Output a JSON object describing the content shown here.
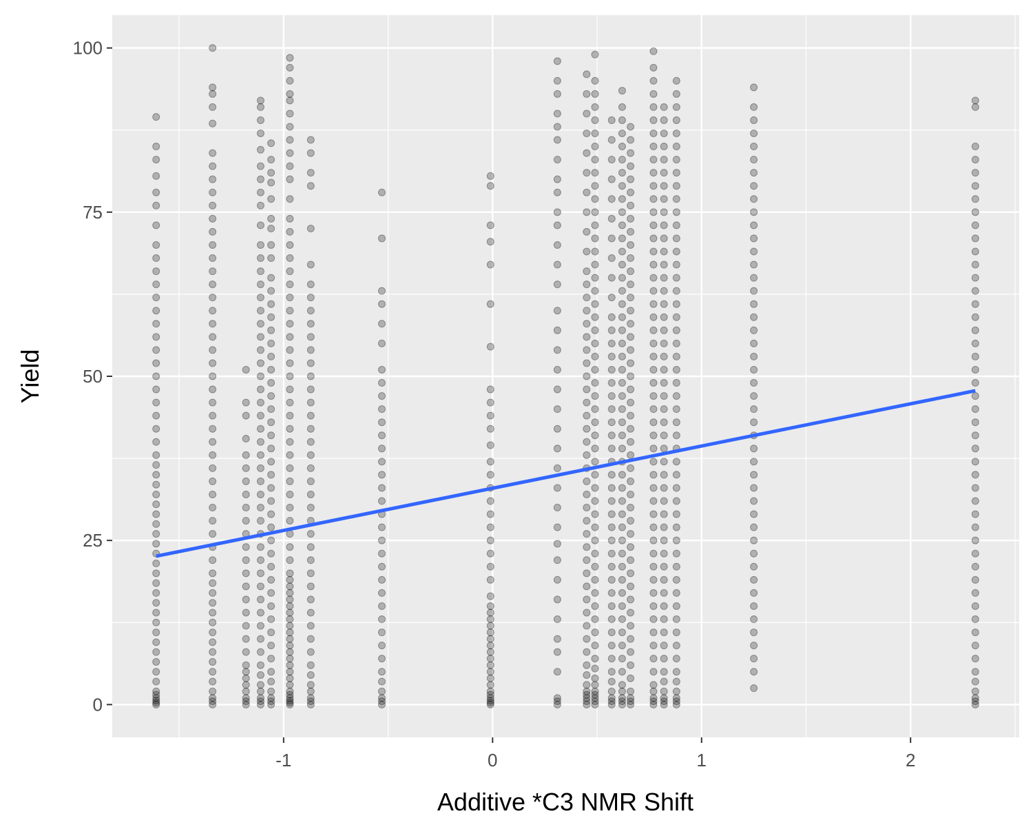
{
  "chart_data": {
    "type": "scatter",
    "title": "",
    "xlabel": "Additive *C3 NMR Shift",
    "ylabel": "Yield",
    "xlim": [
      -1.82,
      2.52
    ],
    "ylim": [
      -5,
      105
    ],
    "x_ticks": [
      -1,
      0,
      1,
      2
    ],
    "x_tick_labels": [
      "-1",
      "0",
      "1",
      "2"
    ],
    "y_ticks": [
      0,
      25,
      50,
      75,
      100
    ],
    "y_tick_labels": [
      "0",
      "25",
      "50",
      "75",
      "100"
    ],
    "grid": true,
    "legend": "none",
    "colors": {
      "panel": "#EBEBEB",
      "grid": "#FFFFFF",
      "points": "#000000",
      "trend_line": "#3366FF"
    },
    "point_alpha": 0.25,
    "trend_line": {
      "x": [
        -1.61,
        2.31
      ],
      "y": [
        22.6,
        47.8
      ]
    },
    "columns": [
      {
        "x": -1.61,
        "y": [
          0.0,
          0.3,
          0.6,
          1.0,
          1.5,
          2.0,
          3.5,
          5.0,
          6.5,
          8.0,
          9.5,
          11.0,
          12.5,
          14.0,
          15.5,
          17.0,
          18.5,
          20.0,
          21.5,
          23.0,
          24.5,
          26.0,
          27.5,
          29.0,
          30.5,
          32.0,
          33.5,
          35.0,
          36.5,
          38.0,
          40.0,
          42.0,
          44.0,
          46.0,
          48.0,
          50.0,
          52.0,
          54.0,
          56.0,
          58.0,
          60.0,
          62.0,
          64.0,
          66.0,
          68.0,
          70.0,
          73.0,
          76.0,
          78.0,
          80.5,
          83.0,
          85.0,
          89.5
        ]
      },
      {
        "x": -1.34,
        "y": [
          0.0,
          0.5,
          1.0,
          2.0,
          3.5,
          5.0,
          6.5,
          8.0,
          9.5,
          11.0,
          12.5,
          14.0,
          15.5,
          17.0,
          18.5,
          20.0,
          22.0,
          24.0,
          26.0,
          28.0,
          30.0,
          32.0,
          34.0,
          36.0,
          38.0,
          40.0,
          42.0,
          44.0,
          46.0,
          48.0,
          50.0,
          52.0,
          54.0,
          56.0,
          58.0,
          60.0,
          62.0,
          64.0,
          66.0,
          68.0,
          70.0,
          72.0,
          74.0,
          76.0,
          78.0,
          80.0,
          82.0,
          84.0,
          88.5,
          91.0,
          93.0,
          94.0,
          100.0
        ]
      },
      {
        "x": -1.18,
        "y": [
          0.0,
          0.5,
          1.0,
          2.0,
          3.0,
          4.0,
          5.0,
          6.0,
          8.0,
          10.0,
          12.0,
          14.0,
          16.0,
          18.0,
          20.0,
          22.0,
          24.0,
          26.0,
          28.0,
          30.0,
          32.0,
          34.0,
          36.0,
          38.0,
          40.5,
          44.0,
          46.0,
          51.0
        ]
      },
      {
        "x": -1.11,
        "y": [
          0.0,
          0.5,
          1.0,
          2.0,
          3.0,
          4.5,
          6.0,
          8.0,
          10.0,
          12.0,
          14.0,
          16.0,
          18.0,
          20.0,
          22.0,
          24.0,
          26.0,
          28.0,
          30.0,
          32.0,
          34.0,
          36.0,
          38.0,
          40.0,
          42.0,
          44.0,
          46.0,
          48.0,
          50.0,
          52.0,
          54.0,
          56.0,
          58.0,
          60.0,
          62.0,
          64.0,
          66.0,
          68.0,
          70.0,
          73.0,
          76.0,
          78.0,
          80.0,
          82.0,
          84.5,
          87.0,
          89.0,
          91.0,
          92.0
        ]
      },
      {
        "x": -1.06,
        "y": [
          0.0,
          0.5,
          1.0,
          2.0,
          3.5,
          5.0,
          7.0,
          9.0,
          11.0,
          13.0,
          15.0,
          17.0,
          19.0,
          21.0,
          23.0,
          25.0,
          27.0,
          29.0,
          31.0,
          33.0,
          35.0,
          37.0,
          39.0,
          41.0,
          43.0,
          45.0,
          47.0,
          49.0,
          51.0,
          53.0,
          55.0,
          57.0,
          59.0,
          61.0,
          63.0,
          65.0,
          68.0,
          70.0,
          72.5,
          74.0,
          77.0,
          79.5,
          81.0,
          83.0,
          85.5
        ]
      },
      {
        "x": -0.97,
        "y": [
          0.0,
          0.3,
          0.6,
          1.0,
          1.5,
          2.0,
          3.0,
          4.0,
          5.0,
          6.0,
          7.0,
          8.0,
          9.0,
          10.0,
          11.0,
          12.0,
          13.0,
          14.0,
          15.0,
          16.0,
          17.0,
          18.0,
          19.0,
          20.0,
          22.0,
          24.0,
          26.0,
          28.0,
          30.0,
          32.0,
          34.0,
          36.0,
          38.0,
          40.0,
          42.0,
          44.0,
          46.0,
          48.0,
          50.0,
          52.0,
          54.0,
          56.0,
          58.0,
          60.0,
          62.0,
          64.0,
          66.0,
          68.0,
          70.0,
          72.0,
          74.0,
          77.0,
          80.0,
          82.0,
          84.0,
          86.0,
          88.0,
          90.0,
          92.0,
          93.0,
          95.0,
          97.0,
          98.5
        ]
      },
      {
        "x": -0.87,
        "y": [
          0.0,
          0.5,
          1.0,
          2.0,
          3.0,
          4.5,
          6.0,
          8.0,
          10.0,
          12.0,
          14.0,
          16.0,
          18.0,
          20.0,
          22.0,
          24.0,
          26.0,
          28.0,
          30.0,
          32.0,
          34.0,
          36.0,
          38.0,
          40.0,
          42.0,
          44.0,
          46.0,
          48.0,
          50.0,
          52.0,
          54.0,
          56.0,
          58.0,
          60.0,
          62.0,
          64.0,
          67.0,
          72.5,
          79.0,
          81.0,
          84.0,
          86.0
        ]
      },
      {
        "x": -0.53,
        "y": [
          0.0,
          0.5,
          1.0,
          2.0,
          3.5,
          5.0,
          7.0,
          9.0,
          11.0,
          13.0,
          15.0,
          17.0,
          19.0,
          21.0,
          23.0,
          25.0,
          27.0,
          29.0,
          31.0,
          33.0,
          35.0,
          37.0,
          39.0,
          41.0,
          43.0,
          45.0,
          47.0,
          49.0,
          51.0,
          55.0,
          58.0,
          61.0,
          63.0,
          71.0,
          78.0
        ]
      },
      {
        "x": -0.01,
        "y": [
          0.0,
          0.3,
          0.6,
          1.0,
          1.5,
          2.0,
          3.0,
          4.0,
          5.0,
          6.0,
          7.0,
          8.0,
          9.0,
          10.0,
          11.0,
          12.0,
          13.0,
          14.0,
          15.0,
          16.5,
          19.0,
          21.0,
          23.0,
          25.0,
          27.0,
          29.0,
          31.0,
          33.0,
          35.0,
          37.0,
          39.5,
          42.0,
          44.0,
          46.0,
          48.0,
          54.5,
          61.0,
          67.0,
          70.5,
          73.0,
          79.0,
          80.5
        ]
      },
      {
        "x": 0.31,
        "y": [
          0.0,
          0.5,
          1.0,
          5.0,
          8.0,
          10.0,
          13.0,
          16.0,
          19.0,
          22.0,
          24.5,
          27.0,
          30.0,
          33.0,
          36.0,
          39.0,
          42.0,
          45.0,
          48.0,
          51.0,
          54.0,
          57.0,
          60.0,
          64.0,
          67.0,
          70.0,
          73.0,
          75.0,
          78.0,
          80.0,
          83.0,
          86.0,
          88.0,
          90.0,
          93.0,
          95.0,
          98.0
        ]
      },
      {
        "x": 0.45,
        "y": [
          0.0,
          0.5,
          1.0,
          1.5,
          2.0,
          3.0,
          4.5,
          6.0,
          8.0,
          10.0,
          12.0,
          14.0,
          16.0,
          18.0,
          20.0,
          22.0,
          24.0,
          26.0,
          28.0,
          30.0,
          32.0,
          34.0,
          36.0,
          38.0,
          40.0,
          42.0,
          44.0,
          46.0,
          48.0,
          50.0,
          52.0,
          54.0,
          56.0,
          58.0,
          60.0,
          62.0,
          64.0,
          66.0,
          69.0,
          72.0,
          75.0,
          78.0,
          81.0,
          84.0,
          87.0,
          90.0,
          93.0,
          96.0
        ]
      },
      {
        "x": 0.49,
        "y": [
          0.0,
          0.5,
          1.0,
          1.5,
          2.0,
          3.0,
          4.0,
          5.5,
          7.0,
          9.0,
          11.0,
          13.0,
          15.0,
          17.0,
          19.0,
          21.0,
          23.0,
          25.0,
          27.0,
          29.0,
          31.0,
          33.0,
          35.0,
          37.0,
          39.0,
          41.0,
          43.0,
          45.0,
          47.0,
          49.0,
          51.0,
          53.0,
          55.0,
          57.0,
          59.0,
          61.0,
          63.0,
          65.0,
          67.0,
          69.0,
          71.0,
          73.0,
          75.0,
          77.0,
          79.0,
          81.0,
          83.0,
          85.0,
          87.0,
          89.0,
          91.0,
          93.0,
          95.0,
          99.0
        ]
      },
      {
        "x": 0.57,
        "y": [
          0.0,
          0.5,
          1.0,
          2.0,
          3.5,
          5.0,
          7.0,
          9.0,
          11.0,
          13.0,
          15.0,
          17.0,
          19.0,
          21.0,
          23.0,
          25.0,
          27.0,
          29.0,
          31.0,
          33.0,
          35.0,
          37.0,
          39.0,
          41.0,
          43.0,
          45.0,
          47.0,
          49.0,
          51.0,
          53.0,
          55.0,
          57.0,
          59.0,
          62.0,
          65.0,
          68.0,
          71.0,
          74.0,
          77.0,
          80.0,
          83.0,
          86.0,
          89.0
        ]
      },
      {
        "x": 0.62,
        "y": [
          0.0,
          0.5,
          1.0,
          2.0,
          3.0,
          5.0,
          7.0,
          9.0,
          11.0,
          13.0,
          15.0,
          17.0,
          19.0,
          21.0,
          23.0,
          25.0,
          27.0,
          29.0,
          31.0,
          33.0,
          35.0,
          37.0,
          39.0,
          41.0,
          43.0,
          45.0,
          47.0,
          49.0,
          51.0,
          53.0,
          55.0,
          57.0,
          59.0,
          61.0,
          63.0,
          65.0,
          67.0,
          69.0,
          71.0,
          73.0,
          75.0,
          77.0,
          79.0,
          81.0,
          83.0,
          85.0,
          87.0,
          89.0,
          91.0,
          93.5
        ]
      },
      {
        "x": 0.66,
        "y": [
          0.0,
          0.5,
          1.0,
          2.0,
          4.0,
          6.0,
          8.0,
          10.0,
          12.0,
          14.0,
          16.0,
          18.0,
          20.0,
          22.0,
          24.0,
          26.0,
          28.0,
          30.0,
          32.0,
          34.0,
          36.0,
          38.0,
          40.0,
          42.0,
          44.0,
          46.0,
          48.0,
          50.0,
          52.0,
          54.0,
          56.0,
          58.0,
          60.0,
          62.0,
          64.0,
          66.0,
          68.0,
          70.0,
          72.0,
          74.0,
          76.0,
          78.0,
          80.0,
          82.0,
          84.0,
          86.0,
          88.0
        ]
      },
      {
        "x": 0.77,
        "y": [
          0.0,
          0.5,
          1.0,
          2.0,
          3.0,
          5.0,
          7.0,
          9.0,
          11.0,
          13.0,
          15.0,
          17.0,
          19.0,
          21.0,
          23.0,
          25.0,
          27.0,
          29.0,
          31.0,
          33.0,
          35.0,
          37.0,
          39.0,
          41.0,
          43.0,
          45.0,
          47.0,
          49.0,
          51.0,
          53.0,
          55.0,
          57.0,
          59.0,
          61.0,
          63.0,
          65.0,
          67.0,
          69.0,
          71.0,
          73.0,
          75.0,
          77.0,
          79.0,
          81.0,
          83.0,
          85.0,
          87.0,
          89.0,
          91.0,
          93.0,
          95.0,
          97.0,
          99.5
        ]
      },
      {
        "x": 0.82,
        "y": [
          0.0,
          0.5,
          1.0,
          2.0,
          3.5,
          5.0,
          7.0,
          9.0,
          11.0,
          13.0,
          15.0,
          17.0,
          19.0,
          21.0,
          23.0,
          25.0,
          27.0,
          29.0,
          31.0,
          33.0,
          35.0,
          37.0,
          39.0,
          41.0,
          43.0,
          45.0,
          47.0,
          49.0,
          51.0,
          53.0,
          55.0,
          57.0,
          59.0,
          61.0,
          63.0,
          65.0,
          67.0,
          69.0,
          71.0,
          73.0,
          75.0,
          77.0,
          79.0,
          81.0,
          83.0,
          85.0,
          87.0,
          89.0,
          91.0
        ]
      },
      {
        "x": 0.88,
        "y": [
          0.0,
          0.5,
          1.0,
          2.0,
          3.5,
          5.0,
          7.0,
          9.0,
          11.0,
          13.0,
          15.0,
          17.0,
          19.0,
          21.0,
          23.0,
          25.0,
          27.0,
          29.0,
          31.0,
          33.0,
          35.0,
          37.0,
          39.0,
          41.0,
          43.0,
          45.0,
          47.0,
          49.0,
          51.0,
          53.0,
          55.0,
          57.0,
          59.0,
          61.0,
          63.0,
          65.0,
          67.0,
          69.0,
          71.0,
          73.0,
          75.0,
          77.0,
          79.0,
          81.0,
          83.0,
          85.0,
          87.0,
          89.0,
          91.0,
          93.0,
          95.0
        ]
      },
      {
        "x": 1.25,
        "y": [
          2.5,
          5.0,
          7.0,
          9.0,
          11.0,
          13.0,
          15.0,
          17.0,
          19.0,
          21.0,
          23.0,
          25.0,
          27.0,
          29.0,
          31.0,
          33.0,
          35.0,
          37.0,
          39.0,
          41.0,
          43.0,
          45.0,
          47.0,
          49.0,
          51.0,
          53.0,
          55.0,
          57.0,
          59.0,
          61.0,
          63.0,
          65.0,
          67.0,
          69.0,
          71.0,
          73.0,
          75.0,
          77.0,
          79.0,
          81.0,
          83.0,
          85.0,
          87.0,
          89.0,
          91.0,
          94.0
        ]
      },
      {
        "x": 2.31,
        "y": [
          0.0,
          0.5,
          1.0,
          2.0,
          3.5,
          5.0,
          7.0,
          9.0,
          11.0,
          13.0,
          15.0,
          17.0,
          19.0,
          21.0,
          23.0,
          25.0,
          27.0,
          29.0,
          31.0,
          33.0,
          35.0,
          37.0,
          39.0,
          41.0,
          43.0,
          45.0,
          47.0,
          49.0,
          51.0,
          53.0,
          55.0,
          57.0,
          59.0,
          61.0,
          63.0,
          65.0,
          67.0,
          69.0,
          71.0,
          73.0,
          75.0,
          77.0,
          79.0,
          81.0,
          83.0,
          85.0,
          91.0,
          92.0
        ]
      }
    ]
  }
}
